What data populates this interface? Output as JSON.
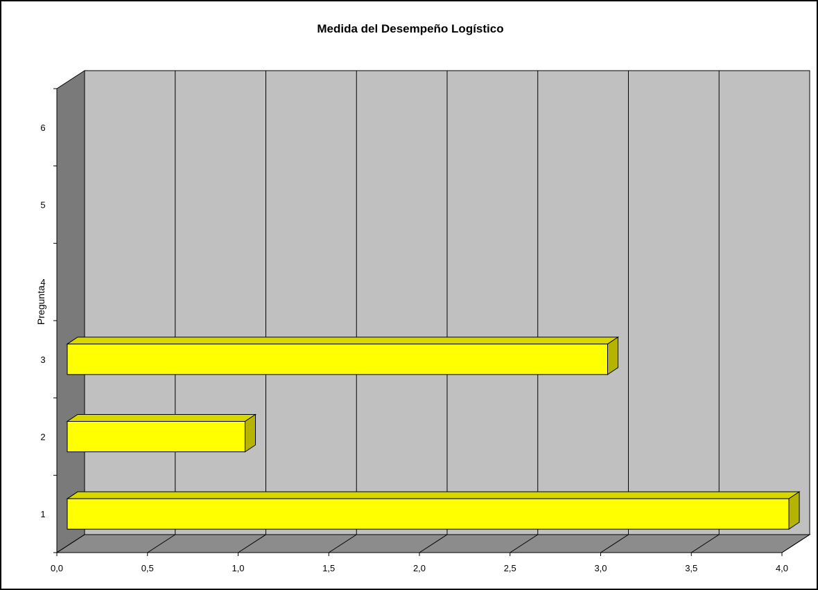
{
  "chart_data": {
    "type": "bar",
    "orientation": "horizontal",
    "title": "Medida del Desempeño Logístico",
    "ylabel": "Pregunta",
    "xlabel": "",
    "categories": [
      "1",
      "2",
      "3",
      "4",
      "5",
      "6"
    ],
    "values": [
      4.0,
      1.0,
      3.0,
      null,
      null,
      null
    ],
    "xlim": [
      0.0,
      4.0
    ],
    "xticks": [
      "0,0",
      "0,5",
      "1,0",
      "1,5",
      "2,0",
      "2,5",
      "3,0",
      "3,5",
      "4,0"
    ],
    "grid": true,
    "legend": "none",
    "colors": {
      "bar_front": "#ffff00",
      "bar_top": "#d8d800",
      "bar_side": "#b5b500",
      "back_wall": "#c0c0c0",
      "floor": "#8c8c8c",
      "left_wall": "#7a7a7a"
    }
  }
}
